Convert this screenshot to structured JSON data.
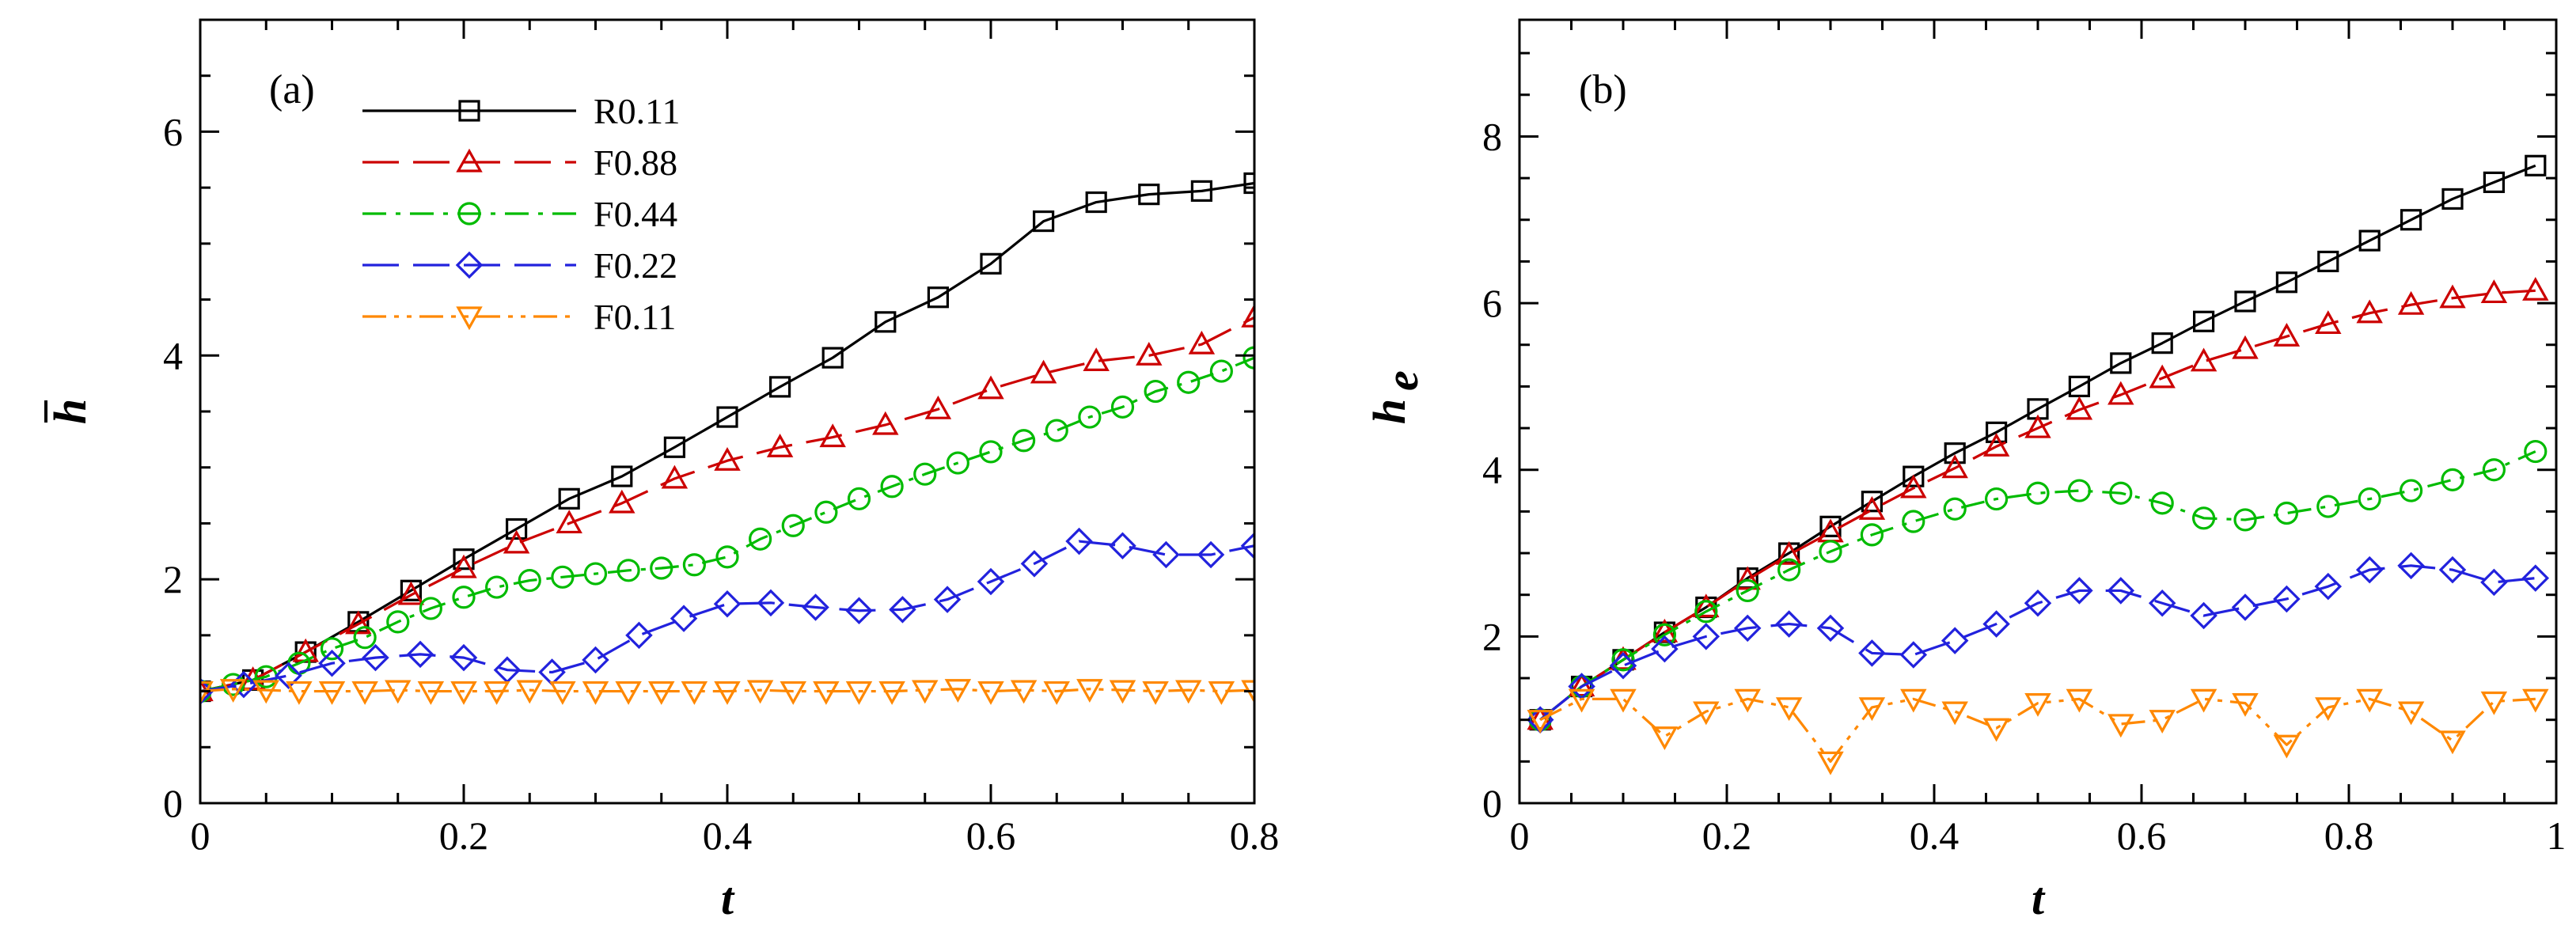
{
  "chart_data": [
    {
      "type": "line",
      "panel_label": "(a)",
      "xlabel": "t",
      "ylabel": "h",
      "ylabel_overbar": true,
      "xlim": [
        0,
        0.8
      ],
      "ylim": [
        0,
        7
      ],
      "xticks": [
        0,
        0.2,
        0.4,
        0.6,
        0.8
      ],
      "xtick_labels": [
        "0",
        "0.2",
        "0.4",
        "0.6",
        "0.8"
      ],
      "yticks": [
        0,
        2,
        4,
        6
      ],
      "ytick_labels": [
        "0",
        "2",
        "4",
        "6"
      ],
      "legend_position": "top-center",
      "series": [
        {
          "name": "R0.11",
          "color": "#000000",
          "dash": "solid",
          "marker": "square",
          "x": [
            0,
            0.04,
            0.08,
            0.12,
            0.16,
            0.2,
            0.24,
            0.28,
            0.32,
            0.36,
            0.4,
            0.44,
            0.48,
            0.52,
            0.56,
            0.6,
            0.64,
            0.68,
            0.72,
            0.76,
            0.8
          ],
          "y": [
            1.0,
            1.1,
            1.35,
            1.62,
            1.9,
            2.18,
            2.45,
            2.72,
            2.92,
            3.18,
            3.45,
            3.72,
            3.98,
            4.3,
            4.52,
            4.82,
            5.2,
            5.37,
            5.44,
            5.47,
            5.54
          ]
        },
        {
          "name": "F0.88",
          "color": "#cc0000",
          "dash": "longdash",
          "marker": "triangle-up",
          "x": [
            0,
            0.04,
            0.08,
            0.12,
            0.16,
            0.2,
            0.24,
            0.28,
            0.32,
            0.36,
            0.4,
            0.44,
            0.48,
            0.52,
            0.56,
            0.6,
            0.64,
            0.68,
            0.72,
            0.76,
            0.8
          ],
          "y": [
            1.0,
            1.1,
            1.35,
            1.6,
            1.86,
            2.1,
            2.32,
            2.5,
            2.68,
            2.9,
            3.06,
            3.18,
            3.27,
            3.38,
            3.52,
            3.7,
            3.84,
            3.95,
            4.0,
            4.1,
            4.34
          ]
        },
        {
          "name": "F0.44",
          "color": "#00bb00",
          "dash": "dashdot",
          "marker": "circle",
          "x": [
            0,
            0.025,
            0.05,
            0.075,
            0.1,
            0.125,
            0.15,
            0.175,
            0.2,
            0.225,
            0.25,
            0.275,
            0.3,
            0.325,
            0.35,
            0.375,
            0.4,
            0.425,
            0.45,
            0.475,
            0.5,
            0.525,
            0.55,
            0.575,
            0.6,
            0.625,
            0.65,
            0.675,
            0.7,
            0.725,
            0.75,
            0.775,
            0.8
          ],
          "y": [
            1.0,
            1.06,
            1.13,
            1.25,
            1.38,
            1.48,
            1.62,
            1.74,
            1.84,
            1.93,
            1.99,
            2.02,
            2.05,
            2.08,
            2.1,
            2.13,
            2.2,
            2.36,
            2.48,
            2.6,
            2.72,
            2.83,
            2.94,
            3.04,
            3.14,
            3.24,
            3.33,
            3.45,
            3.54,
            3.68,
            3.76,
            3.86,
            3.98
          ]
        },
        {
          "name": "F0.22",
          "color": "#2222dd",
          "dash": "longdash",
          "marker": "diamond",
          "x": [
            0,
            0.033,
            0.067,
            0.1,
            0.133,
            0.167,
            0.2,
            0.233,
            0.267,
            0.3,
            0.333,
            0.367,
            0.4,
            0.433,
            0.467,
            0.5,
            0.533,
            0.567,
            0.6,
            0.633,
            0.667,
            0.7,
            0.733,
            0.767,
            0.8
          ],
          "y": [
            1.0,
            1.06,
            1.14,
            1.25,
            1.3,
            1.33,
            1.3,
            1.19,
            1.17,
            1.28,
            1.5,
            1.65,
            1.78,
            1.79,
            1.75,
            1.72,
            1.73,
            1.82,
            1.98,
            2.14,
            2.34,
            2.3,
            2.22,
            2.22,
            2.3
          ]
        },
        {
          "name": "F0.11",
          "color": "#ff8800",
          "dash": "dashdotdot",
          "marker": "triangle-down",
          "x": [
            0,
            0.025,
            0.05,
            0.075,
            0.1,
            0.125,
            0.15,
            0.175,
            0.2,
            0.225,
            0.25,
            0.275,
            0.3,
            0.325,
            0.35,
            0.375,
            0.4,
            0.425,
            0.45,
            0.475,
            0.5,
            0.525,
            0.55,
            0.575,
            0.6,
            0.625,
            0.65,
            0.675,
            0.7,
            0.725,
            0.75,
            0.775,
            0.8
          ],
          "y": [
            1.0,
            1.02,
            1.01,
            1.0,
            1.0,
            1.0,
            1.01,
            1.0,
            1.0,
            1.0,
            1.01,
            1.0,
            1.0,
            1.0,
            1.0,
            1.0,
            1.0,
            1.01,
            1.0,
            1.0,
            1.0,
            1.0,
            1.01,
            1.02,
            1.0,
            1.01,
            1.0,
            1.02,
            1.01,
            1.0,
            1.01,
            1.0,
            1.01
          ]
        }
      ]
    },
    {
      "type": "line",
      "panel_label": "(b)",
      "xlabel": "t",
      "ylabel": "h",
      "ylabel_sub": "e",
      "xlim": [
        0,
        1
      ],
      "ylim": [
        0,
        9.4
      ],
      "xticks": [
        0,
        0.2,
        0.4,
        0.6,
        0.8,
        1
      ],
      "xtick_labels": [
        "0",
        "0.2",
        "0.4",
        "0.6",
        "0.8",
        "1"
      ],
      "yticks": [
        0,
        2,
        4,
        6,
        8
      ],
      "ytick_labels": [
        "0",
        "2",
        "4",
        "6",
        "8"
      ],
      "series": [
        {
          "name": "R0.11",
          "color": "#000000",
          "dash": "solid",
          "marker": "square",
          "x": [
            0.02,
            0.06,
            0.1,
            0.14,
            0.18,
            0.22,
            0.26,
            0.3,
            0.34,
            0.38,
            0.42,
            0.46,
            0.5,
            0.54,
            0.58,
            0.62,
            0.66,
            0.7,
            0.74,
            0.78,
            0.82,
            0.86,
            0.9,
            0.94,
            0.98
          ],
          "y": [
            1.0,
            1.4,
            1.72,
            2.05,
            2.35,
            2.7,
            3.0,
            3.32,
            3.62,
            3.92,
            4.2,
            4.45,
            4.73,
            5.0,
            5.28,
            5.52,
            5.78,
            6.02,
            6.25,
            6.5,
            6.75,
            7.0,
            7.25,
            7.45,
            7.65
          ]
        },
        {
          "name": "F0.88",
          "color": "#cc0000",
          "dash": "longdash",
          "marker": "triangle-up",
          "x": [
            0.02,
            0.06,
            0.1,
            0.14,
            0.18,
            0.22,
            0.26,
            0.3,
            0.34,
            0.38,
            0.42,
            0.46,
            0.5,
            0.54,
            0.58,
            0.62,
            0.66,
            0.7,
            0.74,
            0.78,
            0.82,
            0.86,
            0.9,
            0.94,
            0.98
          ],
          "y": [
            1.0,
            1.4,
            1.72,
            2.05,
            2.35,
            2.68,
            2.98,
            3.25,
            3.52,
            3.78,
            4.02,
            4.28,
            4.5,
            4.72,
            4.9,
            5.1,
            5.3,
            5.45,
            5.6,
            5.75,
            5.88,
            5.98,
            6.06,
            6.12,
            6.15
          ]
        },
        {
          "name": "F0.44",
          "color": "#00bb00",
          "dash": "dashdot",
          "marker": "circle",
          "x": [
            0.02,
            0.06,
            0.1,
            0.14,
            0.18,
            0.22,
            0.26,
            0.3,
            0.34,
            0.38,
            0.42,
            0.46,
            0.5,
            0.54,
            0.58,
            0.62,
            0.66,
            0.7,
            0.74,
            0.78,
            0.82,
            0.86,
            0.9,
            0.94,
            0.98
          ],
          "y": [
            1.0,
            1.4,
            1.72,
            2.02,
            2.3,
            2.55,
            2.8,
            3.02,
            3.22,
            3.38,
            3.53,
            3.65,
            3.72,
            3.75,
            3.72,
            3.6,
            3.42,
            3.4,
            3.48,
            3.56,
            3.65,
            3.75,
            3.88,
            4.0,
            4.22
          ]
        },
        {
          "name": "F0.22",
          "color": "#2222dd",
          "dash": "longdash",
          "marker": "diamond",
          "x": [
            0.02,
            0.06,
            0.1,
            0.14,
            0.18,
            0.22,
            0.26,
            0.3,
            0.34,
            0.38,
            0.42,
            0.46,
            0.5,
            0.54,
            0.58,
            0.62,
            0.66,
            0.7,
            0.74,
            0.78,
            0.82,
            0.86,
            0.9,
            0.94,
            0.98
          ],
          "y": [
            1.0,
            1.4,
            1.65,
            1.85,
            2.0,
            2.1,
            2.15,
            2.1,
            1.8,
            1.78,
            1.95,
            2.15,
            2.4,
            2.55,
            2.55,
            2.4,
            2.25,
            2.35,
            2.45,
            2.6,
            2.8,
            2.85,
            2.8,
            2.65,
            2.7
          ]
        },
        {
          "name": "F0.11",
          "color": "#ff8800",
          "dash": "dashdotdot",
          "marker": "triangle-down",
          "x": [
            0.02,
            0.06,
            0.1,
            0.14,
            0.18,
            0.22,
            0.26,
            0.3,
            0.34,
            0.38,
            0.42,
            0.46,
            0.5,
            0.54,
            0.58,
            0.62,
            0.66,
            0.7,
            0.74,
            0.78,
            0.82,
            0.86,
            0.9,
            0.94,
            0.98
          ],
          "y": [
            1.0,
            1.25,
            1.25,
            0.8,
            1.1,
            1.25,
            1.15,
            0.5,
            1.15,
            1.25,
            1.1,
            0.9,
            1.2,
            1.25,
            0.95,
            1.0,
            1.25,
            1.2,
            0.7,
            1.15,
            1.25,
            1.1,
            0.75,
            1.22,
            1.25
          ]
        }
      ]
    }
  ]
}
